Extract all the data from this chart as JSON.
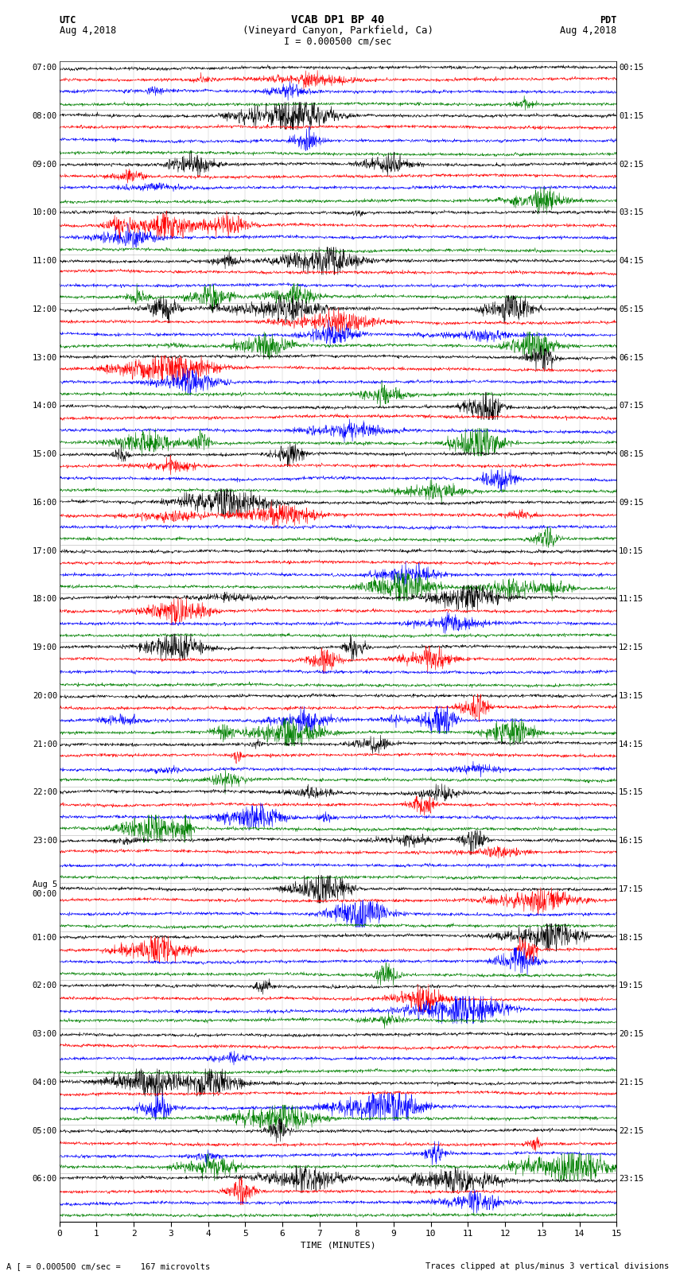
{
  "title_line1": "VCAB DP1 BP 40",
  "title_line2": "(Vineyard Canyon, Parkfield, Ca)",
  "scale_label": "I = 0.000500 cm/sec",
  "bottom_label1": "A [ = 0.000500 cm/sec =    167 microvolts",
  "bottom_label2": "Traces clipped at plus/minus 3 vertical divisions",
  "xlabel": "TIME (MINUTES)",
  "utc_labels": [
    "07:00",
    "08:00",
    "09:00",
    "10:00",
    "11:00",
    "12:00",
    "13:00",
    "14:00",
    "15:00",
    "16:00",
    "17:00",
    "18:00",
    "19:00",
    "20:00",
    "21:00",
    "22:00",
    "23:00",
    "Aug 5\n00:00",
    "01:00",
    "02:00",
    "03:00",
    "04:00",
    "05:00",
    "06:00"
  ],
  "pdt_labels": [
    "00:15",
    "01:15",
    "02:15",
    "03:15",
    "04:15",
    "05:15",
    "06:15",
    "07:15",
    "08:15",
    "09:15",
    "10:15",
    "11:15",
    "12:15",
    "13:15",
    "14:15",
    "15:15",
    "16:15",
    "17:15",
    "18:15",
    "19:15",
    "20:15",
    "21:15",
    "22:15",
    "23:15"
  ],
  "colors": [
    "black",
    "red",
    "blue",
    "green"
  ],
  "n_hours": 24,
  "traces_per_hour": 4,
  "n_minutes": 15,
  "samples_per_trace": 1800,
  "amp_base": 0.38,
  "background_color": "white",
  "figsize": [
    8.5,
    16.13
  ],
  "dpi": 100,
  "seed": 42,
  "linewidth": 0.4
}
